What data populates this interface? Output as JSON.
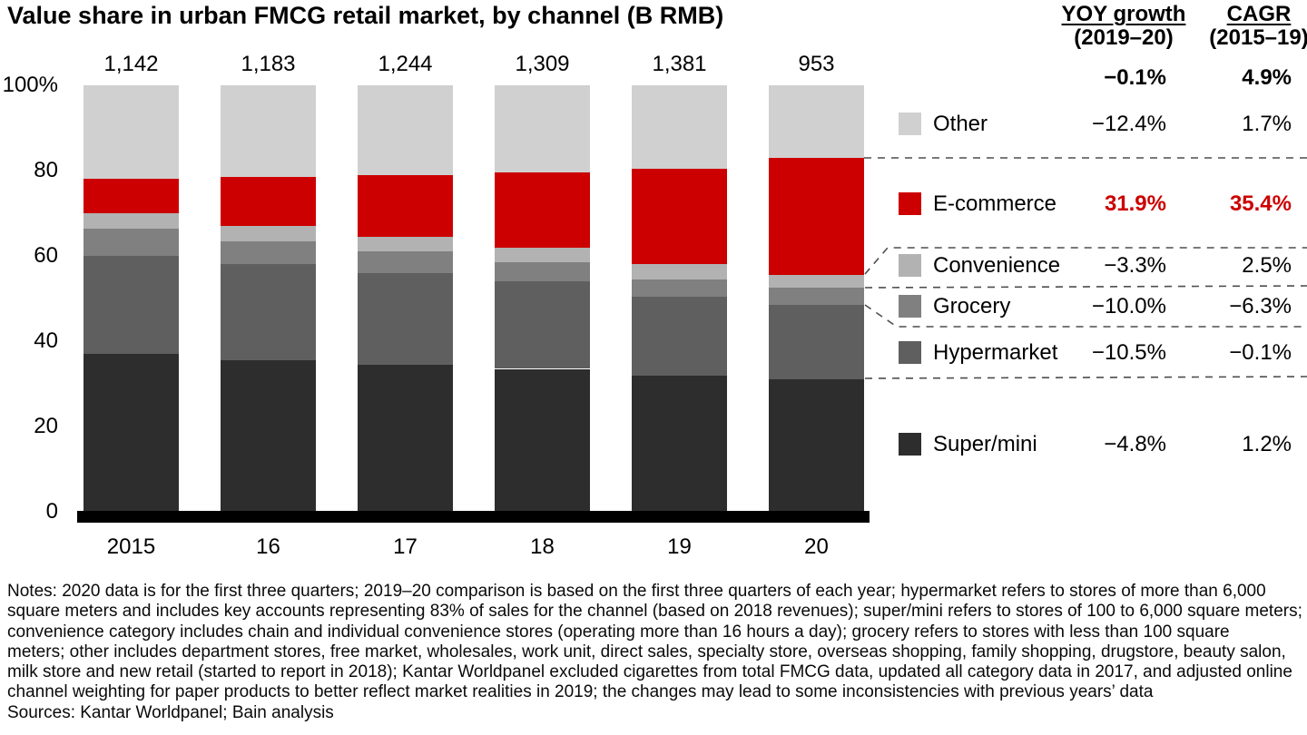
{
  "title": "Value share in urban FMCG retail market, by channel (B RMB)",
  "stats_header": {
    "col1_title": "YOY growth",
    "col1_subtitle": "(2019–20)",
    "col2_title": "CAGR",
    "col2_subtitle": "(2015–19)",
    "total_yoy": "−0.1%",
    "total_cagr": "4.9%"
  },
  "accent_color": "#cc0000",
  "chart_data": {
    "type": "bar",
    "stacked": true,
    "title": "Value share in urban FMCG retail market, by channel (B RMB)",
    "categories": [
      "2015",
      "16",
      "17",
      "18",
      "19",
      "20"
    ],
    "totals": [
      "1,142",
      "1,183",
      "1,244",
      "1,309",
      "1,381",
      "953"
    ],
    "unit": "percent of total value; totals in B RMB",
    "ylim": [
      0,
      100
    ],
    "yticks": [
      {
        "label": "100%",
        "v": 100
      },
      {
        "label": "80",
        "v": 80
      },
      {
        "label": "60",
        "v": 60
      },
      {
        "label": "40",
        "v": 40
      },
      {
        "label": "20",
        "v": 20
      },
      {
        "label": "0",
        "v": 0
      }
    ],
    "series": [
      {
        "name": "Super/mini",
        "color": "#2d2d2d",
        "values": [
          37,
          35.5,
          34.5,
          33.5,
          32,
          31
        ]
      },
      {
        "name": "Hypermarket",
        "color": "#5f5f5f",
        "values": [
          23,
          22.5,
          21.5,
          20.5,
          18.5,
          17.5
        ]
      },
      {
        "name": "Grocery",
        "color": "#808080",
        "values": [
          6.5,
          5.5,
          5,
          4.5,
          4,
          4
        ]
      },
      {
        "name": "Convenience",
        "color": "#b2b2b2",
        "values": [
          3.5,
          3.5,
          3.5,
          3.5,
          3.5,
          3
        ]
      },
      {
        "name": "E-commerce",
        "color": "#cc0000",
        "values": [
          8,
          11.5,
          14.5,
          17.5,
          22.5,
          27.5
        ]
      },
      {
        "name": "Other",
        "color": "#d0d0d0",
        "values": [
          22,
          21.5,
          21,
          20.5,
          19.5,
          17
        ]
      }
    ],
    "legend_position": "right"
  },
  "legend": {
    "rows": [
      {
        "label": "Other",
        "yoy": "−12.4%",
        "cagr": "1.7%",
        "color": "#d0d0d0",
        "highlight": false
      },
      {
        "label": "E-commerce",
        "yoy": "31.9%",
        "cagr": "35.4%",
        "color": "#cc0000",
        "highlight": true
      },
      {
        "label": "Convenience",
        "yoy": "−3.3%",
        "cagr": "2.5%",
        "color": "#b2b2b2",
        "highlight": false
      },
      {
        "label": "Grocery",
        "yoy": "−10.0%",
        "cagr": "−6.3%",
        "color": "#808080",
        "highlight": false
      },
      {
        "label": "Hypermarket",
        "yoy": "−10.5%",
        "cagr": "−0.1%",
        "color": "#5f5f5f",
        "highlight": false
      },
      {
        "label": "Super/mini",
        "yoy": "−4.8%",
        "cagr": "1.2%",
        "color": "#2d2d2d",
        "highlight": false
      }
    ]
  },
  "notes": {
    "lines": [
      "Notes: 2020 data is for the first three quarters; 2019–20 comparison is based on the first three quarters of each year; hypermarket refers to stores of more than 6,000",
      "square meters and includes key accounts representing 83% of sales for the channel (based on 2018 revenues); super/mini refers to stores of 100 to 6,000 square meters;",
      "convenience category includes chain and individual convenience stores (operating more than 16 hours a day); grocery refers to stores with less than 100 square",
      "meters; other includes department stores, free market, wholesales, work unit, direct sales, specialty store, overseas shopping, family shopping, drugstore, beauty salon,",
      "milk store and new retail (started to report in 2018); Kantar Worldpanel excluded cigarettes from total FMCG data, updated all category data in 2017, and adjusted online",
      "channel weighting for paper products to better reflect market realities in 2019; the changes may lead to some inconsistencies with previous years’ data"
    ],
    "sources": "Sources: Kantar Worldpanel; Bain analysis"
  }
}
